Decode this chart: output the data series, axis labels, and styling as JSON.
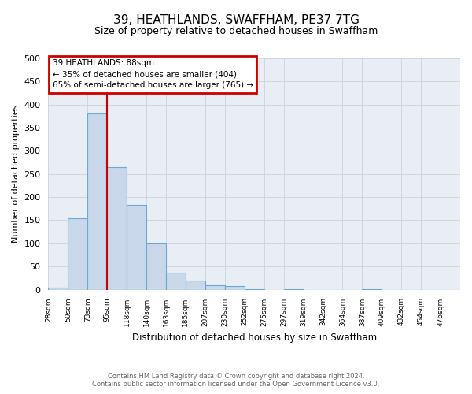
{
  "title": "39, HEATHLANDS, SWAFFHAM, PE37 7TG",
  "subtitle": "Size of property relative to detached houses in Swaffham",
  "xlabel": "Distribution of detached houses by size in Swaffham",
  "ylabel": "Number of detached properties",
  "bar_values": [
    5,
    155,
    380,
    265,
    183,
    100,
    36,
    20,
    9,
    8,
    1,
    0,
    1,
    0,
    0,
    0,
    1,
    0,
    0,
    0,
    0
  ],
  "bin_labels": [
    "28sqm",
    "50sqm",
    "73sqm",
    "95sqm",
    "118sqm",
    "140sqm",
    "163sqm",
    "185sqm",
    "207sqm",
    "230sqm",
    "252sqm",
    "275sqm",
    "297sqm",
    "319sqm",
    "342sqm",
    "364sqm",
    "387sqm",
    "409sqm",
    "432sqm",
    "454sqm",
    "476sqm"
  ],
  "bar_color": "#c8d8ea",
  "bar_edge_color": "#6aaad4",
  "vline_color": "#cc0000",
  "annotation_title": "39 HEATHLANDS: 88sqm",
  "annotation_line1": "← 35% of detached houses are smaller (404)",
  "annotation_line2": "65% of semi-detached houses are larger (765) →",
  "annotation_box_color": "#cc0000",
  "ylim": [
    0,
    500
  ],
  "yticks": [
    0,
    50,
    100,
    150,
    200,
    250,
    300,
    350,
    400,
    450,
    500
  ],
  "footnote1": "Contains HM Land Registry data © Crown copyright and database right 2024.",
  "footnote2": "Contains public sector information licensed under the Open Government Licence v3.0.",
  "grid_color": "#cdd8e3",
  "plot_bg_color": "#e8eef4",
  "fig_bg_color": "#ffffff"
}
